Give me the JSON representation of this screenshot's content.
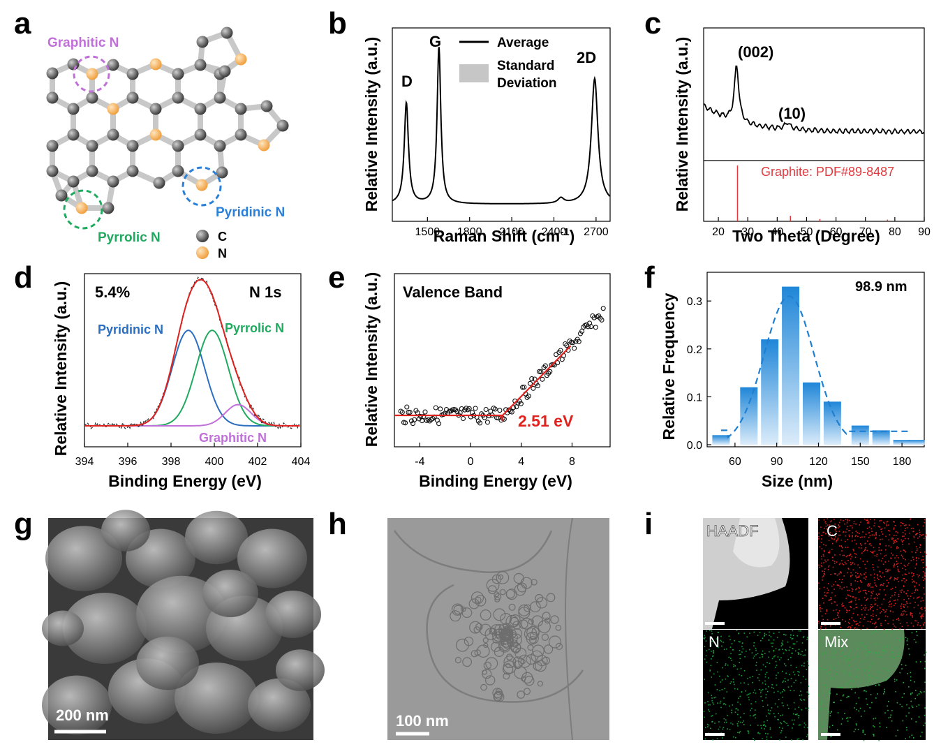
{
  "panels": {
    "a": {
      "letter": "a",
      "labels": {
        "graphitic": "Graphitic N",
        "pyridinic": "Pyridinic N",
        "pyrrolic": "Pyrrolic N"
      },
      "legend": {
        "c": "C",
        "n": "N"
      },
      "colors": {
        "carbon": "#555555",
        "nitrogen": "#f5a94a",
        "graphitic": "#c070d8",
        "pyridinic": "#2a7fd6",
        "pyrrolic": "#1faa5f"
      }
    },
    "b": {
      "letter": "b",
      "ylabel": "Relative Intensity (a.u.)",
      "xlabel_main": "Raman Shift (cm",
      "xlabel_sup": "-1",
      "xlabel_end": ")",
      "peaks": {
        "d": "D",
        "g": "G",
        "2d": "2D"
      },
      "legend_avg": "Average",
      "legend_std_1": "Standard",
      "legend_std_2": "Deviation"
    },
    "c": {
      "letter": "c",
      "ylabel": "Relative Intensity (a.u.)",
      "xlabel": "Two Theta (Degree)",
      "peak1": "(002)",
      "peak2": "(10)",
      "ref": "Graphite: PDF#89-8487"
    },
    "d": {
      "letter": "d",
      "ylabel": "Relative Intensity (a.u.)",
      "xlabel": "Binding Energy (eV)",
      "percent": "5.4%",
      "region": "N 1s",
      "pyridinic": "Pyridinic N",
      "pyrrolic": "Pyrrolic N",
      "graphitic": "Graphitic N"
    },
    "e": {
      "letter": "e",
      "ylabel": "Relative Intensity (a.u.)",
      "xlabel": "Binding Energy (eV)",
      "title": "Valence Band",
      "value": "2.51 eV"
    },
    "f": {
      "letter": "f",
      "ylabel": "Relative Frequency",
      "xlabel": "Size (nm)",
      "mean": "98.9 nm"
    },
    "g": {
      "letter": "g",
      "scale": "200 nm"
    },
    "h": {
      "letter": "h",
      "scale": "100 nm"
    },
    "i": {
      "letter": "i",
      "maps": [
        "HAADF",
        "C",
        "N",
        "Mix"
      ]
    }
  },
  "chart_data": [
    {
      "type": "line",
      "panel": "b",
      "x_ticks": [
        1500,
        1800,
        2100,
        2400,
        2700
      ],
      "xlim": [
        1250,
        2800
      ],
      "series": [
        {
          "name": "Average",
          "x": [
            1250,
            1300,
            1340,
            1350,
            1360,
            1400,
            1500,
            1560,
            1580,
            1600,
            1700,
            1800,
            2100,
            2400,
            2450,
            2500,
            2600,
            2660,
            2680,
            2700,
            2800
          ],
          "y": [
            0.05,
            0.1,
            0.45,
            0.58,
            0.45,
            0.04,
            0.1,
            0.8,
            0.92,
            0.6,
            0.03,
            0.03,
            0.03,
            0.04,
            0.07,
            0.04,
            0.12,
            0.7,
            0.74,
            0.6,
            0.05
          ]
        }
      ]
    },
    {
      "type": "line",
      "panel": "c",
      "x_ticks": [
        20,
        30,
        40,
        50,
        60,
        70,
        80,
        90
      ],
      "xlim": [
        15,
        90
      ],
      "series": [
        {
          "x": [
            15,
            20,
            24,
            26,
            27,
            30,
            40,
            43,
            45,
            50,
            60,
            70,
            80,
            90
          ],
          "y": [
            0.6,
            0.64,
            0.75,
            1.0,
            0.7,
            0.45,
            0.3,
            0.36,
            0.3,
            0.26,
            0.23,
            0.21,
            0.2,
            0.19
          ]
        }
      ],
      "reference": {
        "name": "Graphite: PDF#89-8487",
        "x": [
          26.5,
          44.5,
          54.5,
          77.5
        ],
        "y": [
          1.0,
          0.1,
          0.04,
          0.03
        ]
      }
    },
    {
      "type": "line",
      "panel": "d",
      "x_ticks": [
        394,
        396,
        398,
        400,
        402,
        404
      ],
      "xlim": [
        394,
        404
      ],
      "series": [
        {
          "name": "Pyridinic N",
          "center": 398.8,
          "height": 0.72,
          "width": 0.75
        },
        {
          "name": "Pyrrolic N",
          "center": 399.9,
          "height": 0.72,
          "width": 0.75
        },
        {
          "name": "Graphitic N",
          "center": 401.1,
          "height": 0.16,
          "width": 0.6
        }
      ]
    },
    {
      "type": "scatter",
      "panel": "e",
      "x_ticks": [
        -4,
        0,
        4,
        8
      ],
      "xlim": [
        -6,
        11
      ],
      "onset": 2.51
    },
    {
      "type": "bar",
      "panel": "f",
      "x_ticks": [
        60,
        90,
        120,
        150,
        180
      ],
      "y_ticks": [
        0.0,
        0.1,
        0.2,
        0.3
      ],
      "categories": [
        50,
        70,
        85,
        100,
        115,
        130,
        150,
        165,
        180,
        190
      ],
      "values": [
        0.02,
        0.12,
        0.22,
        0.33,
        0.13,
        0.09,
        0.04,
        0.03,
        0.01,
        0.01
      ],
      "ylim": [
        0,
        0.36
      ],
      "xlim": [
        40,
        196
      ]
    }
  ]
}
